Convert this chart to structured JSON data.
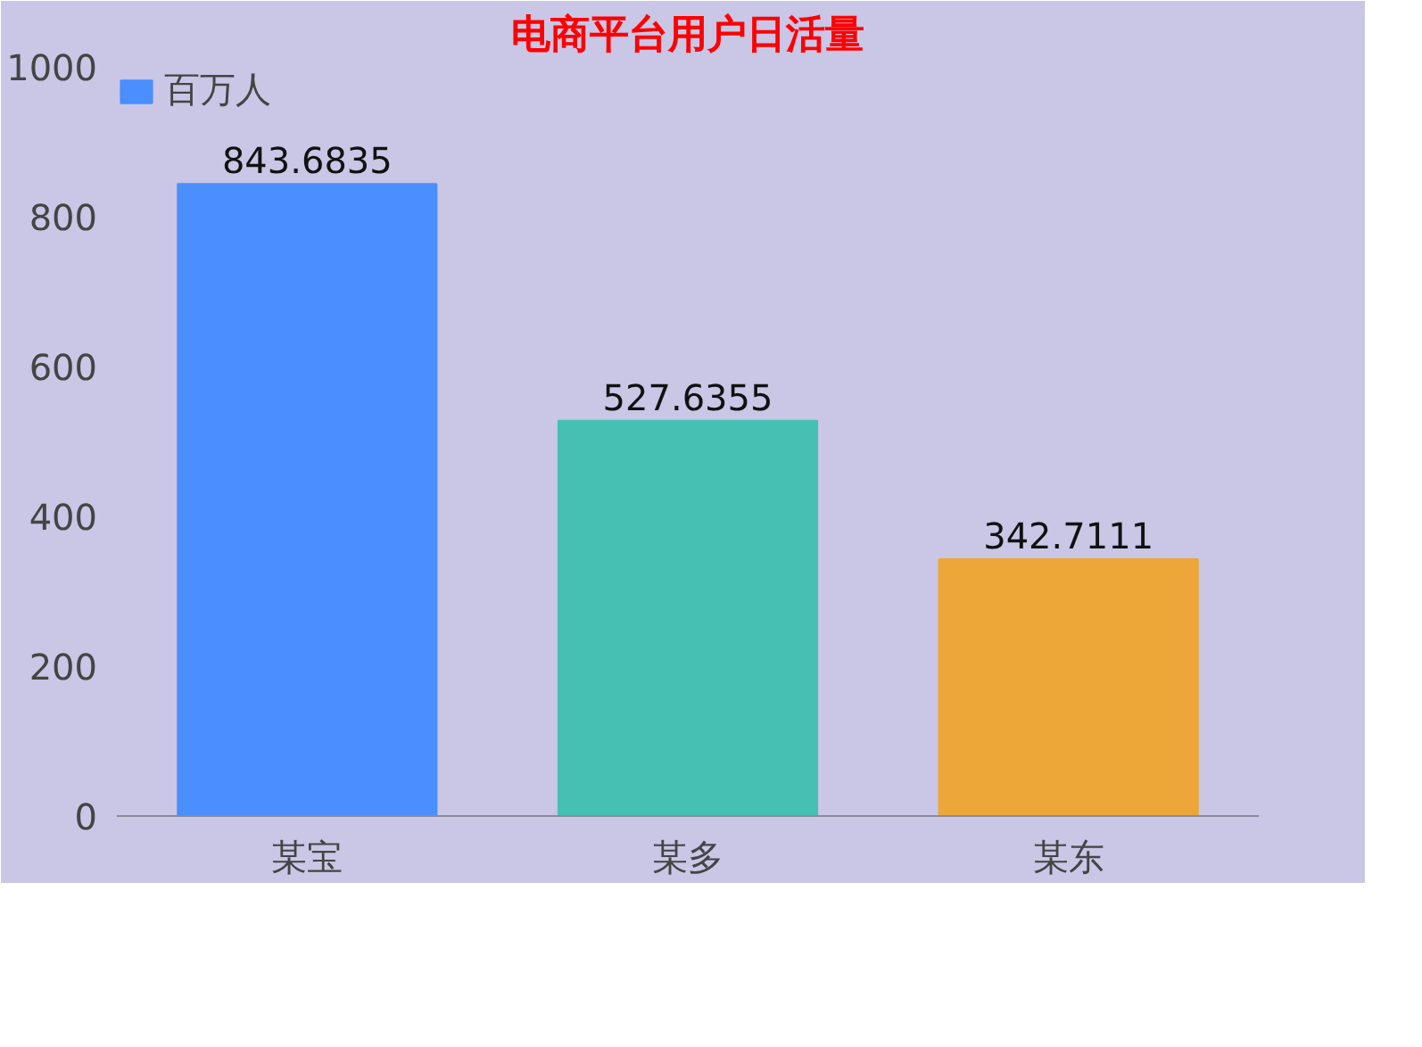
{
  "chart_data": {
    "type": "bar",
    "title": "电商平台用户日活量",
    "categories": [
      "某宝",
      "某多",
      "某东"
    ],
    "series": [
      {
        "name": "百万人",
        "colors": [
          "#4a8ffd",
          "#45c0b2",
          "#eca738"
        ],
        "values": [
          843.6835,
          527.6355,
          342.7111
        ]
      }
    ],
    "ylim": [
      0,
      1000
    ],
    "yticks": [
      0,
      200,
      400,
      600,
      800,
      1000
    ],
    "data_labels": true,
    "legend": "top left",
    "grid": false
  }
}
